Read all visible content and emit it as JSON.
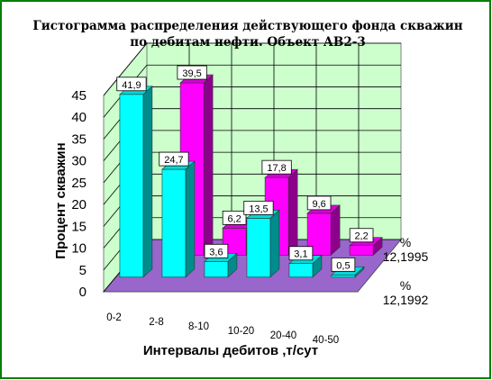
{
  "chart_data": {
    "type": "bar",
    "title_lines": [
      "Гистограмма распределения действующего фонда скважин",
      "по дебитам нефти. Объект АВ2-3"
    ],
    "xlabel": "Интервалы дебитов ,т/сут",
    "ylabel": "Процент скважин",
    "ylim": [
      0,
      45
    ],
    "yticks": [
      0,
      5,
      10,
      15,
      20,
      25,
      30,
      35,
      40,
      45
    ],
    "categories": [
      "0-2",
      "2-8",
      "8-10",
      "10-20",
      "20-40",
      "40-50"
    ],
    "series": [
      {
        "name_lines": [
          "%",
          "12,1995"
        ],
        "values": [
          null,
          39.5,
          6.2,
          17.8,
          9.6,
          2.2
        ],
        "labels": [
          "",
          "39,5",
          "6,2",
          "17,8",
          "9,6",
          "2,2"
        ],
        "color": "#FF00FF"
      },
      {
        "name_lines": [
          "%",
          "12,1992"
        ],
        "values": [
          41.9,
          24.7,
          3.6,
          13.5,
          3.1,
          0.5
        ],
        "labels": [
          "41,9",
          "24,7",
          "3,6",
          "13,5",
          "3,1",
          "0,5"
        ],
        "color": "#00FFFF"
      }
    ],
    "grid": true,
    "colors": {
      "wall": "#CCFFCC",
      "floor": "#9966CC",
      "border": "#008000"
    }
  }
}
